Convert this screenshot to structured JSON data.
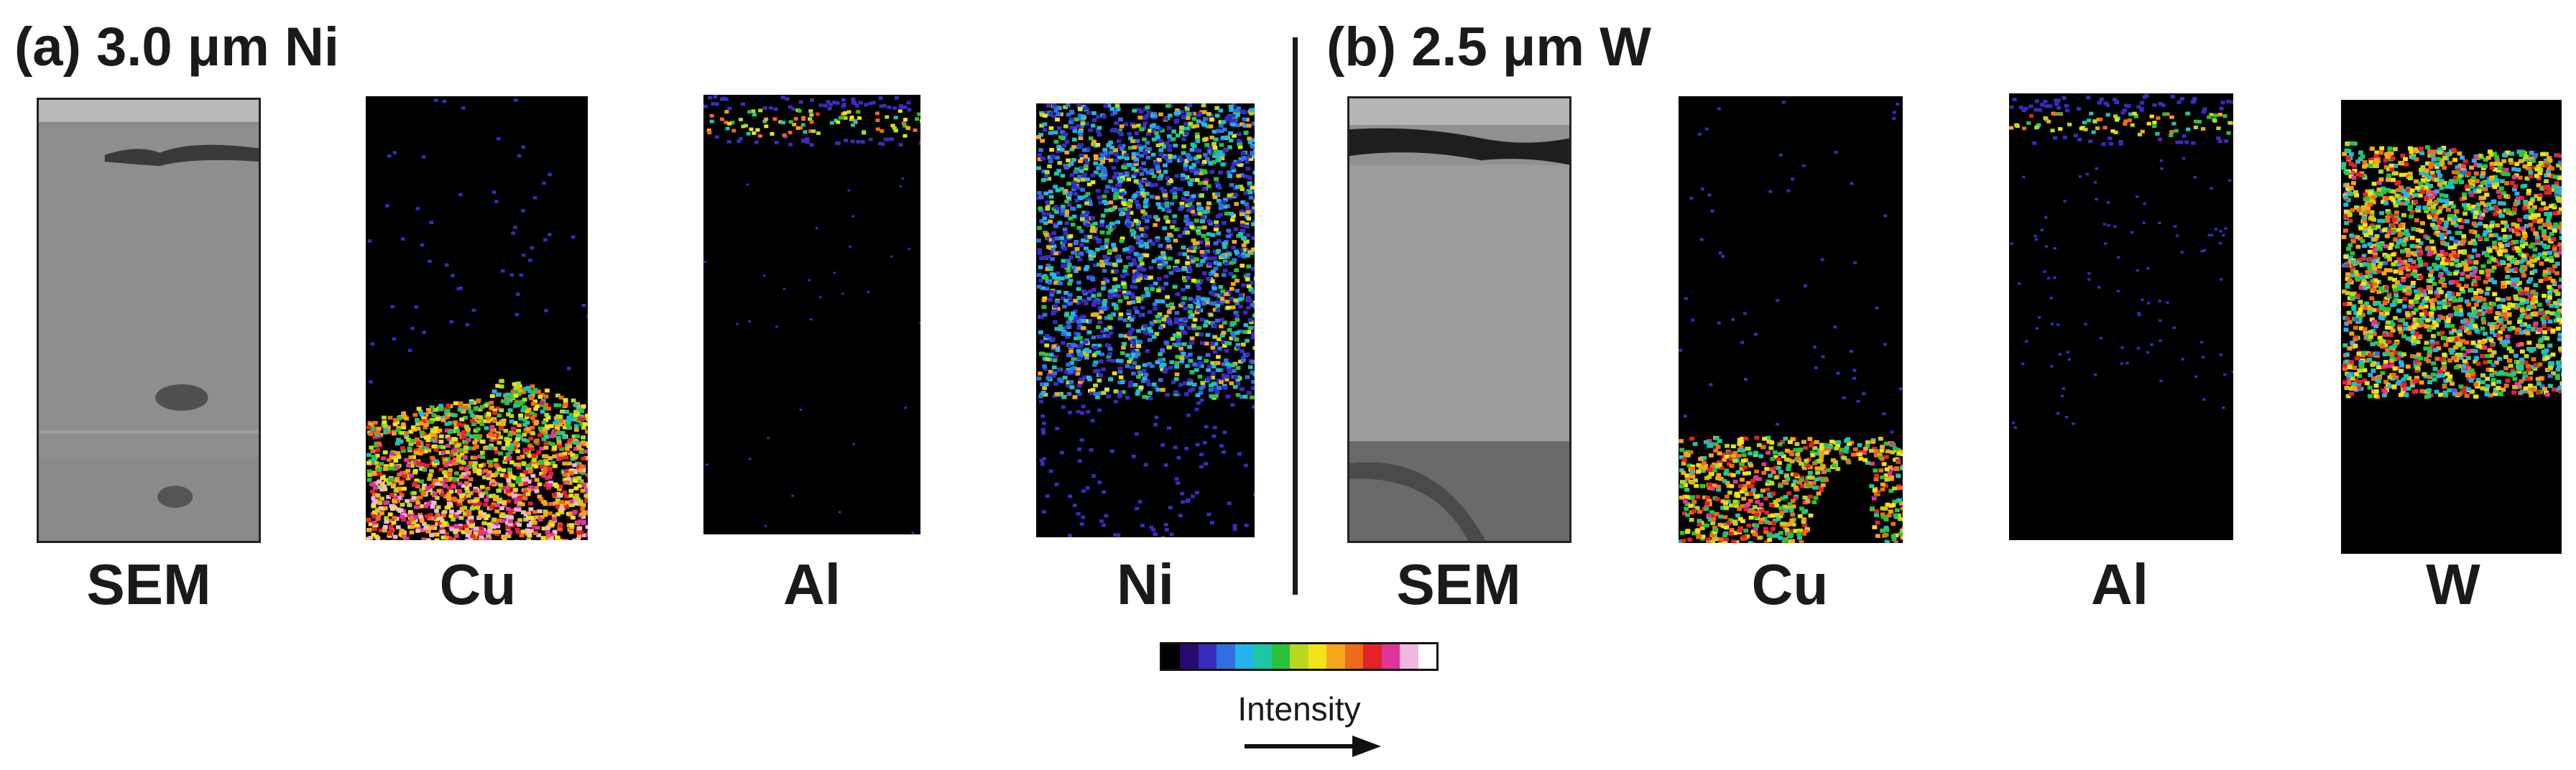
{
  "panels": [
    {
      "title": "(a) 3.0 μm Ni",
      "maps": [
        {
          "label": "SEM",
          "kind": "sem",
          "variant": "ni"
        },
        {
          "label": "Cu",
          "kind": "eds",
          "element": "Cu",
          "layer": "bottom-bump"
        },
        {
          "label": "Al",
          "kind": "eds",
          "element": "Al",
          "layer": "top-thin"
        },
        {
          "label": "Ni",
          "kind": "eds",
          "element": "Ni",
          "layer": "middle-sparse"
        }
      ]
    },
    {
      "title": "(b) 2.5 μm W",
      "maps": [
        {
          "label": "SEM",
          "kind": "sem",
          "variant": "w"
        },
        {
          "label": "Cu",
          "kind": "eds",
          "element": "Cu",
          "layer": "bottom-left"
        },
        {
          "label": "Al",
          "kind": "eds",
          "element": "Al",
          "layer": "top-thin"
        },
        {
          "label": "W",
          "kind": "eds",
          "element": "W",
          "layer": "middle-dense"
        }
      ]
    }
  ],
  "legend": {
    "label": "Intensity",
    "colors": [
      "#000000",
      "#2a0a6e",
      "#3a2bbf",
      "#2f6fe0",
      "#24b3e8",
      "#1fc6a6",
      "#2bc23a",
      "#b8d820",
      "#f2e21a",
      "#f7a51c",
      "#f06a1b",
      "#e2232a",
      "#e0359a",
      "#f0b8e0",
      "#ffffff"
    ]
  }
}
